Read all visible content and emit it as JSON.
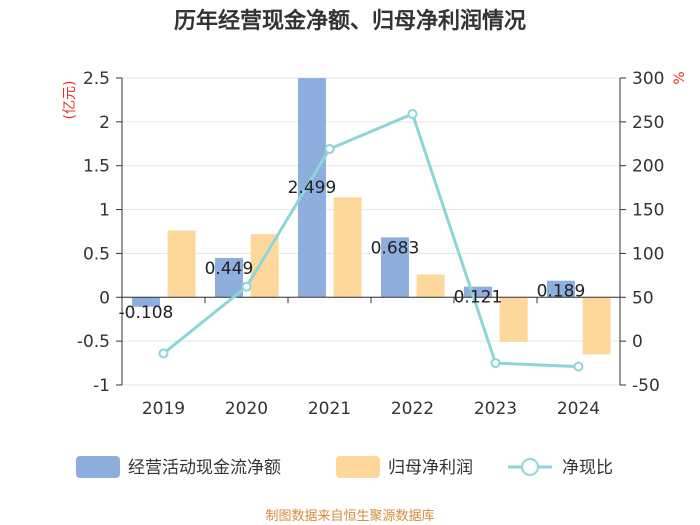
{
  "chart_data": {
    "type": "bar",
    "title": "历年经营现金净额、归母净利润情况",
    "categories": [
      "2019",
      "2020",
      "2021",
      "2022",
      "2023",
      "2024"
    ],
    "left_axis": {
      "unit": "(亿元)",
      "ylim": [
        -1,
        2.5
      ],
      "ticks": [
        "2.5",
        "2",
        "1.5",
        "1",
        "0.5",
        "0",
        "-0.5",
        "-1"
      ],
      "tick_values": [
        2.5,
        2,
        1.5,
        1,
        0.5,
        0,
        -0.5,
        -1
      ]
    },
    "right_axis": {
      "unit": "%",
      "ylim": [
        -50,
        300
      ],
      "ticks": [
        "300",
        "250",
        "200",
        "150",
        "100",
        "50",
        "0",
        "-50"
      ],
      "tick_values": [
        300,
        250,
        200,
        150,
        100,
        50,
        0,
        -50
      ]
    },
    "series": [
      {
        "name": "经营活动现金流净额",
        "type": "bar",
        "axis": "left",
        "color": "#8eaedd",
        "values": [
          -0.108,
          0.449,
          2.499,
          0.683,
          0.121,
          0.189
        ],
        "labels": [
          "-0.108",
          "0.449",
          "2.499",
          "0.683",
          "0.121",
          "0.189"
        ]
      },
      {
        "name": "归母净利润",
        "type": "bar",
        "axis": "left",
        "color": "#fdd89a",
        "values": [
          0.76,
          0.72,
          1.14,
          0.26,
          -0.51,
          -0.65
        ]
      },
      {
        "name": "净现比",
        "type": "line",
        "axis": "right",
        "color": "#8dd5d9",
        "values": [
          -14,
          62,
          219,
          259,
          -25,
          -29
        ]
      }
    ],
    "grid": true,
    "legend_position": "bottom"
  },
  "footer": {
    "source": "制图数据来自恒生聚源数据库"
  }
}
